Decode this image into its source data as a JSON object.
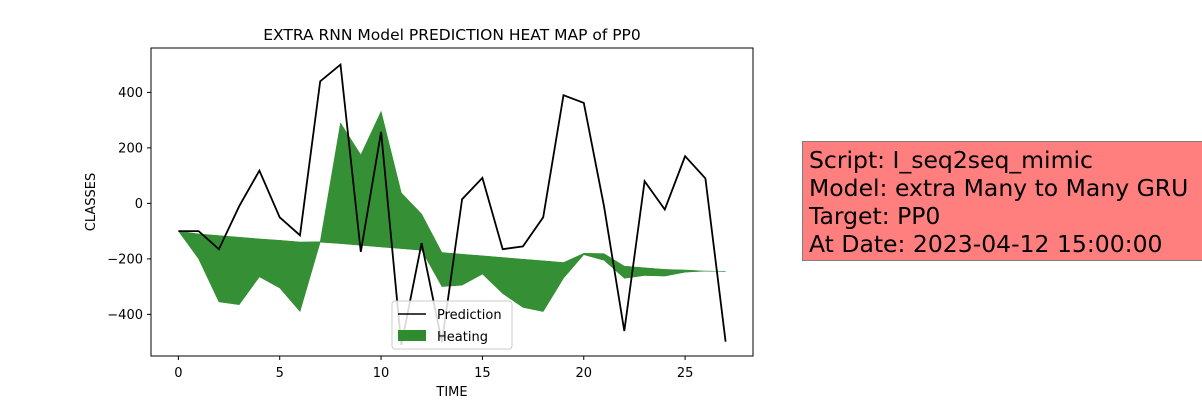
{
  "chart_data": {
    "type": "line",
    "title": "EXTRA RNN Model PREDICTION HEAT MAP of PP0",
    "xlabel": "TIME",
    "ylabel": "CLASSES",
    "xlim": [
      -1.35,
      28.35
    ],
    "ylim": [
      -550,
      560
    ],
    "xticks": [
      0,
      5,
      10,
      15,
      20,
      25
    ],
    "yticks": [
      -400,
      -200,
      0,
      200,
      400
    ],
    "grid": false,
    "legend_position": "lower-center",
    "x": [
      0,
      1,
      2,
      3,
      4,
      5,
      6,
      7,
      8,
      9,
      10,
      11,
      12,
      13,
      14,
      15,
      16,
      17,
      18,
      19,
      20,
      21,
      22,
      23,
      24,
      25,
      26,
      27
    ],
    "series": [
      {
        "name": "Prediction",
        "color": "#000000",
        "values": [
          -100,
          -100,
          -165,
          -10,
          118,
          -50,
          -115,
          440,
          500,
          -175,
          258,
          -510,
          -143,
          -500,
          15,
          92,
          -165,
          -155,
          -50,
          390,
          362,
          -10,
          -460,
          80,
          -22,
          170,
          90,
          -498
        ]
      },
      {
        "name": "Heating",
        "color": "#2e8b2e",
        "kind": "fill_between",
        "upper": [
          -100,
          -110,
          -116,
          -122,
          -128,
          -133,
          -139,
          -138,
          290,
          175,
          332,
          38,
          -38,
          -177,
          -183,
          -189,
          -195,
          -201,
          -207,
          -213,
          -180,
          -181,
          -226,
          -232,
          -238,
          -240,
          -244,
          -245
        ],
        "lower": [
          -100,
          -200,
          -355,
          -365,
          -265,
          -305,
          -390,
          -140,
          -145,
          -151,
          -157,
          -163,
          -169,
          -300,
          -295,
          -255,
          -325,
          -375,
          -390,
          -270,
          -185,
          -205,
          -270,
          -260,
          -262,
          -248,
          -244,
          -245
        ]
      }
    ]
  },
  "info_box": {
    "lines": [
      "Script: I_seq2seq_mimic",
      "Model: extra Many to Many GRU",
      "Target: PP0",
      "At Date: 2023-04-12 15:00:00"
    ]
  }
}
